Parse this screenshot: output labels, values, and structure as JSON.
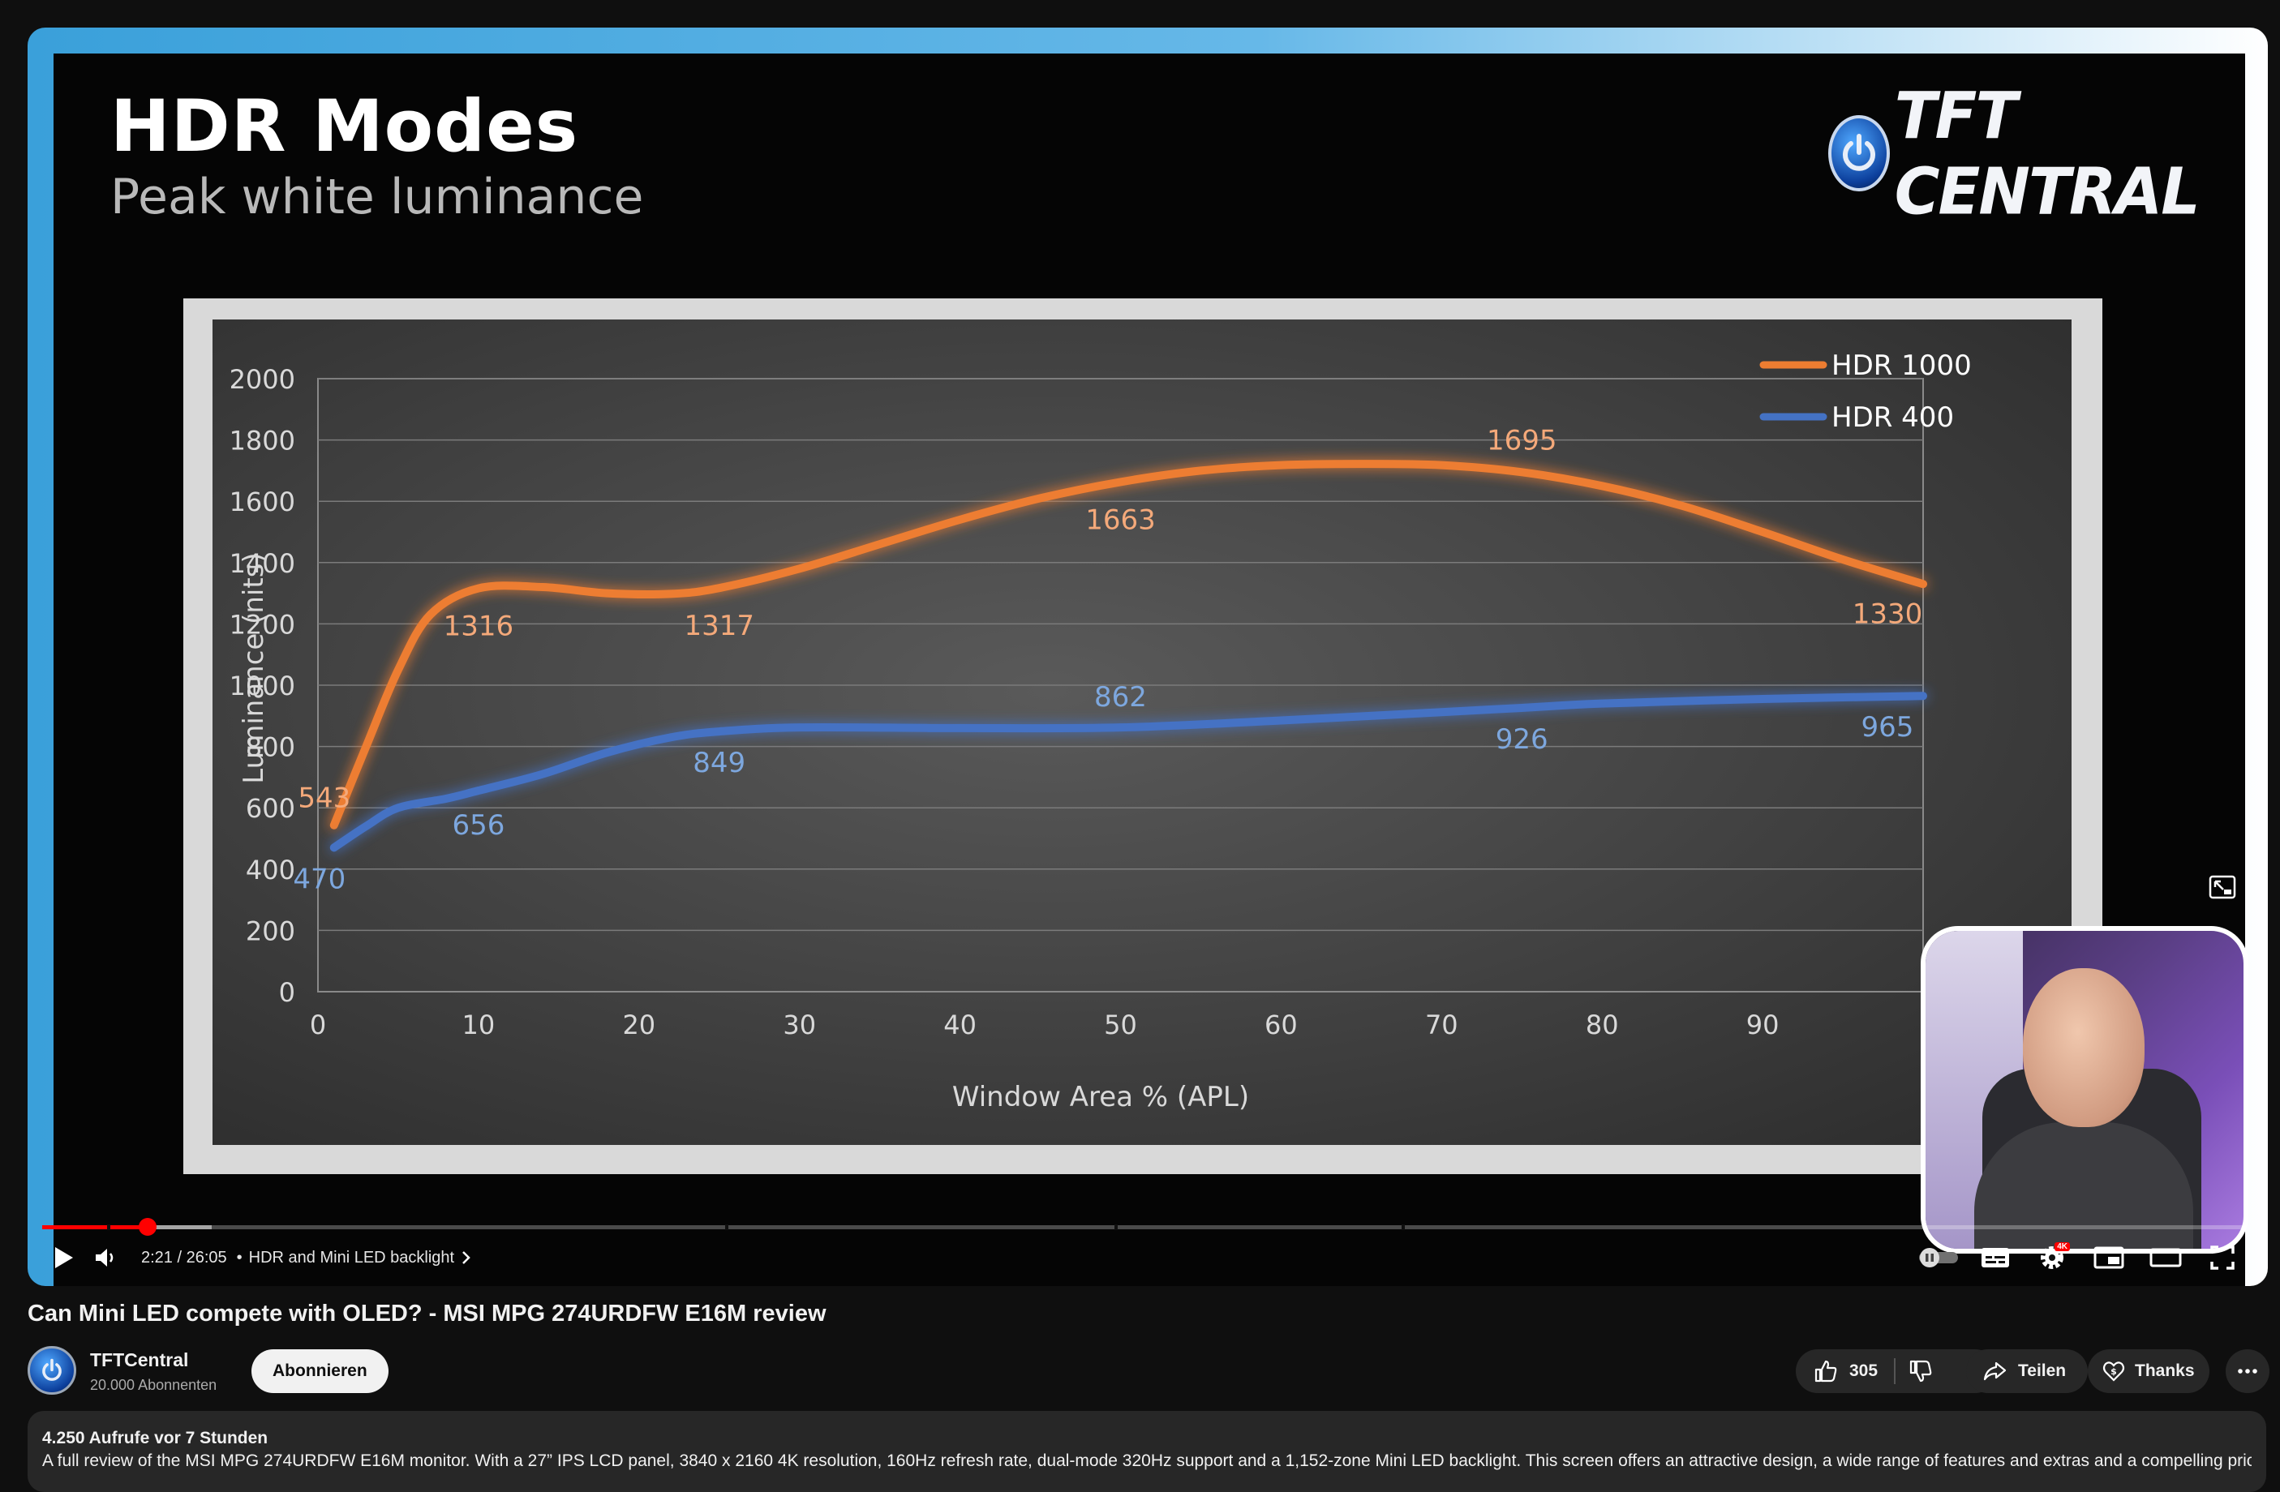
{
  "slide": {
    "title": "HDR Modes",
    "subtitle": "Peak white luminance",
    "logo_text": "TFT CENTRAL",
    "logo_icon": "power-icon"
  },
  "chart_data": {
    "type": "line",
    "title": "",
    "xlabel": "Window Area % (APL)",
    "ylabel": "Luminance (nits)",
    "xlim": [
      0,
      100
    ],
    "ylim": [
      0,
      2000
    ],
    "x_ticks": [
      "0",
      "10",
      "20",
      "30",
      "40",
      "50",
      "60",
      "70",
      "80",
      "90"
    ],
    "y_ticks": [
      "0",
      "200",
      "400",
      "600",
      "800",
      "1000",
      "1200",
      "1400",
      "1600",
      "1800",
      "2000"
    ],
    "grid": true,
    "legend_position": "top-right",
    "series": [
      {
        "name": "HDR 1000",
        "color": "#ed7d31",
        "points": [
          [
            1,
            543
          ],
          [
            10,
            1316
          ],
          [
            25,
            1317
          ],
          [
            50,
            1663
          ],
          [
            75,
            1695
          ],
          [
            100,
            1330
          ]
        ],
        "curve": [
          [
            1,
            543
          ],
          [
            3,
            800
          ],
          [
            5,
            1050
          ],
          [
            7,
            1230
          ],
          [
            10,
            1316
          ],
          [
            14,
            1320
          ],
          [
            18,
            1300
          ],
          [
            22,
            1298
          ],
          [
            25,
            1317
          ],
          [
            30,
            1380
          ],
          [
            35,
            1460
          ],
          [
            40,
            1540
          ],
          [
            45,
            1610
          ],
          [
            50,
            1663
          ],
          [
            55,
            1700
          ],
          [
            60,
            1718
          ],
          [
            65,
            1722
          ],
          [
            70,
            1718
          ],
          [
            75,
            1695
          ],
          [
            80,
            1650
          ],
          [
            85,
            1585
          ],
          [
            90,
            1500
          ],
          [
            95,
            1410
          ],
          [
            100,
            1330
          ]
        ],
        "labels": [
          {
            "x": 1,
            "y": 543,
            "text": "543"
          },
          {
            "x": 10,
            "y": 1316,
            "text": "1316"
          },
          {
            "x": 25,
            "y": 1317,
            "text": "1317"
          },
          {
            "x": 50,
            "y": 1663,
            "text": "1663"
          },
          {
            "x": 75,
            "y": 1695,
            "text": "1695"
          },
          {
            "x": 100,
            "y": 1330,
            "text": "1330"
          }
        ]
      },
      {
        "name": "HDR 400",
        "color": "#4472c4",
        "points": [
          [
            1,
            470
          ],
          [
            10,
            656
          ],
          [
            25,
            849
          ],
          [
            50,
            862
          ],
          [
            75,
            926
          ],
          [
            100,
            965
          ]
        ],
        "curve": [
          [
            1,
            470
          ],
          [
            3,
            540
          ],
          [
            5,
            600
          ],
          [
            8,
            630
          ],
          [
            10,
            656
          ],
          [
            14,
            710
          ],
          [
            18,
            780
          ],
          [
            22,
            830
          ],
          [
            25,
            849
          ],
          [
            30,
            862
          ],
          [
            40,
            860
          ],
          [
            50,
            862
          ],
          [
            60,
            885
          ],
          [
            70,
            912
          ],
          [
            75,
            926
          ],
          [
            80,
            940
          ],
          [
            90,
            955
          ],
          [
            100,
            965
          ]
        ],
        "labels": [
          {
            "x": 1,
            "y": 470,
            "text": "470"
          },
          {
            "x": 10,
            "y": 656,
            "text": "656"
          },
          {
            "x": 25,
            "y": 849,
            "text": "849"
          },
          {
            "x": 50,
            "y": 862,
            "text": "862"
          },
          {
            "x": 75,
            "y": 926,
            "text": "926"
          },
          {
            "x": 100,
            "y": 965,
            "text": "965"
          }
        ]
      }
    ]
  },
  "player": {
    "time": "2:21 / 26:05",
    "chapter": "HDR and Mini LED backlight",
    "separator": "•",
    "progress_played": 0.0478,
    "progress_buffered": 0.0769,
    "quality_badge": "4K",
    "icons": {
      "play": "play-icon",
      "volume": "volume-icon",
      "autoplay": "autoplay-toggle-icon",
      "subtitles": "subtitles-icon",
      "settings": "settings-gear-icon",
      "miniplayer": "miniplayer-icon",
      "theater": "theater-mode-icon",
      "fullscreen": "fullscreen-icon",
      "pip_expand": "expand-icon"
    }
  },
  "video": {
    "title": "Can Mini LED compete with OLED? - MSI MPG 274URDFW E16M review"
  },
  "channel": {
    "name": "TFTCentral",
    "subscribers": "20.000 Abonnenten",
    "subscribe_label": "Abonnieren"
  },
  "actions": {
    "likes": "305",
    "share_label": "Teilen",
    "thanks_label": "Thanks"
  },
  "description": {
    "meta": "4.250 Aufrufe  vor 7 Stunden",
    "text": "A full review of the MSI MPG 274URDFW E16M monitor. With a 27” IPS LCD panel, 3840 x 2160 4K resolution, 160Hz refresh rate, dual-mode 320Hz support and a 1,152-zone Mini LED backlight. This screen offers an attractive design, a wide range of features and extras and a compelling price."
  }
}
